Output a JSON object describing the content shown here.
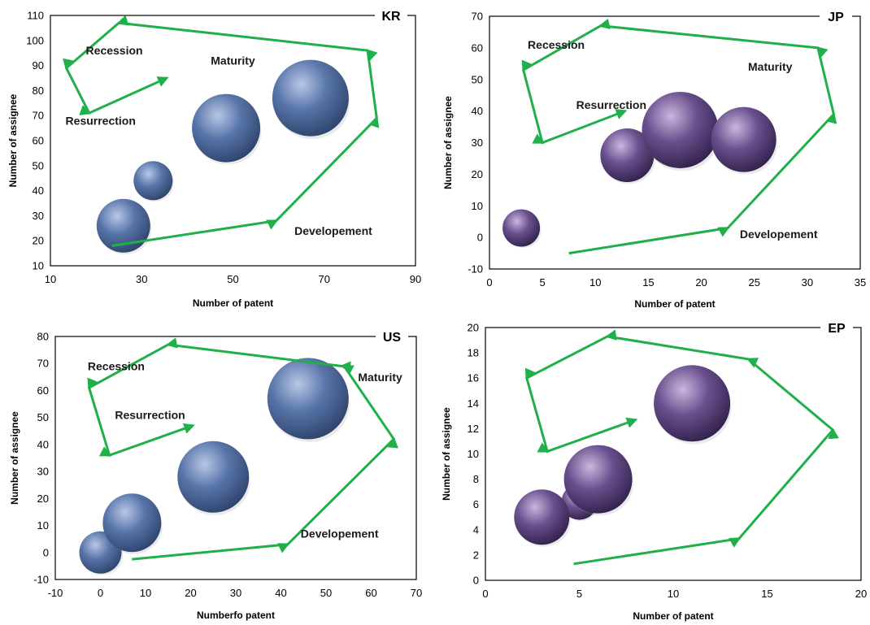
{
  "figure": {
    "ylabel_common": "Number of assignee"
  },
  "colors": {
    "arrow": "#20b04a",
    "blue_bubble_light": "#b9c7e6",
    "blue_bubble_mid": "#5875a9",
    "blue_bubble_dark": "#2b3f66",
    "purple_bubble_light": "#c9b7df",
    "purple_bubble_mid": "#6a4f8e",
    "purple_bubble_dark": "#2c1d45"
  },
  "chart_data": [
    {
      "type": "scatter",
      "subtype": "bubble",
      "tag": "KR",
      "xlabel": "Number of patent",
      "ylabel": "Number of assignee",
      "xlim": [
        10,
        90
      ],
      "ylim": [
        10,
        110
      ],
      "xticks": [
        10,
        30,
        50,
        70,
        90
      ],
      "yticks": [
        10,
        20,
        30,
        40,
        50,
        60,
        70,
        80,
        90,
        100,
        110
      ],
      "grid": false,
      "bubble_color": "blue",
      "points": [
        {
          "x": 26,
          "y": 26,
          "size": 33
        },
        {
          "x": 32.5,
          "y": 44,
          "size": 24
        },
        {
          "x": 48.5,
          "y": 65,
          "size": 42
        },
        {
          "x": 67,
          "y": 77,
          "size": 47
        }
      ],
      "phase_labels": [
        {
          "text": "Recession",
          "x": 24,
          "y": 96
        },
        {
          "text": "Maturity",
          "x": 50,
          "y": 92
        },
        {
          "text": "Resurrection",
          "x": 21,
          "y": 68
        },
        {
          "text": "Developement",
          "x": 72,
          "y": 24
        }
      ],
      "cycle_path": [
        [
          23.5,
          18
        ],
        [
          59.5,
          28
        ],
        [
          81.5,
          69
        ],
        [
          79.5,
          96
        ],
        [
          25,
          107
        ],
        [
          13.5,
          89
        ],
        [
          18.5,
          71
        ],
        [
          35.5,
          85
        ]
      ]
    },
    {
      "type": "scatter",
      "subtype": "bubble",
      "tag": "JP",
      "xlabel": "Number of patent",
      "ylabel": "Number of assignee",
      "xlim": [
        0,
        35
      ],
      "ylim": [
        -10,
        70
      ],
      "xticks": [
        0,
        5,
        10,
        15,
        20,
        25,
        30,
        35
      ],
      "yticks": [
        -10,
        0,
        10,
        20,
        30,
        40,
        50,
        60,
        70
      ],
      "grid": false,
      "bubble_color": "purple",
      "points": [
        {
          "x": 3,
          "y": 3,
          "size": 23
        },
        {
          "x": 13,
          "y": 26,
          "size": 33
        },
        {
          "x": 18,
          "y": 34,
          "size": 47
        },
        {
          "x": 24,
          "y": 31,
          "size": 40
        }
      ],
      "phase_labels": [
        {
          "text": "Recession",
          "x": 6.3,
          "y": 61
        },
        {
          "text": "Maturity",
          "x": 26.5,
          "y": 54
        },
        {
          "text": "Resurrection",
          "x": 11.5,
          "y": 42
        },
        {
          "text": "Developement",
          "x": 27.3,
          "y": 1
        }
      ],
      "cycle_path": [
        [
          7.5,
          -5
        ],
        [
          22.5,
          3
        ],
        [
          32.5,
          39
        ],
        [
          31,
          60
        ],
        [
          10.5,
          67
        ],
        [
          3.2,
          53
        ],
        [
          5,
          30
        ],
        [
          12.8,
          40
        ]
      ]
    },
    {
      "type": "scatter",
      "subtype": "bubble",
      "tag": "US",
      "xlabel": "Numberfo patent",
      "ylabel": "Number of assignee",
      "xlim": [
        -10,
        70
      ],
      "ylim": [
        -10,
        80
      ],
      "xticks": [
        -10,
        0,
        10,
        20,
        30,
        40,
        50,
        60,
        70
      ],
      "yticks": [
        -10,
        0,
        10,
        20,
        30,
        40,
        50,
        60,
        70,
        80
      ],
      "grid": false,
      "bubble_color": "blue",
      "points": [
        {
          "x": 0,
          "y": 0,
          "size": 26
        },
        {
          "x": 7,
          "y": 11,
          "size": 36
        },
        {
          "x": 25,
          "y": 28,
          "size": 44
        },
        {
          "x": 46,
          "y": 57,
          "size": 50
        }
      ],
      "phase_labels": [
        {
          "text": "Recession",
          "x": 3.5,
          "y": 69
        },
        {
          "text": "Maturity",
          "x": 62,
          "y": 65
        },
        {
          "text": "Resurrection",
          "x": 11,
          "y": 51
        },
        {
          "text": "Developement",
          "x": 53,
          "y": 7
        }
      ],
      "cycle_path": [
        [
          7,
          -2.5
        ],
        [
          41.5,
          3
        ],
        [
          65,
          42
        ],
        [
          54,
          69
        ],
        [
          53.5,
          69
        ],
        [
          15,
          77
        ],
        [
          -2.5,
          61
        ],
        [
          2,
          36
        ],
        [
          20.5,
          47
        ]
      ]
    },
    {
      "type": "scatter",
      "subtype": "bubble",
      "tag": "EP",
      "xlabel": "Number of patent",
      "ylabel": "Number of assignee",
      "xlim": [
        0,
        20
      ],
      "ylim": [
        0,
        20
      ],
      "xticks": [
        0,
        5,
        10,
        15,
        20
      ],
      "yticks": [
        0,
        2,
        4,
        6,
        8,
        10,
        12,
        14,
        16,
        18,
        20
      ],
      "grid": false,
      "bubble_color": "purple",
      "points": [
        {
          "x": 5,
          "y": 6.2,
          "size": 22
        },
        {
          "x": 3,
          "y": 5,
          "size": 34
        },
        {
          "x": 6,
          "y": 8,
          "size": 42
        },
        {
          "x": 11,
          "y": 14,
          "size": 47
        }
      ],
      "phase_labels": [],
      "cycle_path": [
        [
          4.7,
          1.3
        ],
        [
          13.5,
          3.3
        ],
        [
          18.5,
          11.9
        ],
        [
          14,
          17.5
        ],
        [
          6.5,
          19.3
        ],
        [
          2.2,
          16
        ],
        [
          3.3,
          10.2
        ],
        [
          8,
          12.7
        ]
      ]
    }
  ]
}
